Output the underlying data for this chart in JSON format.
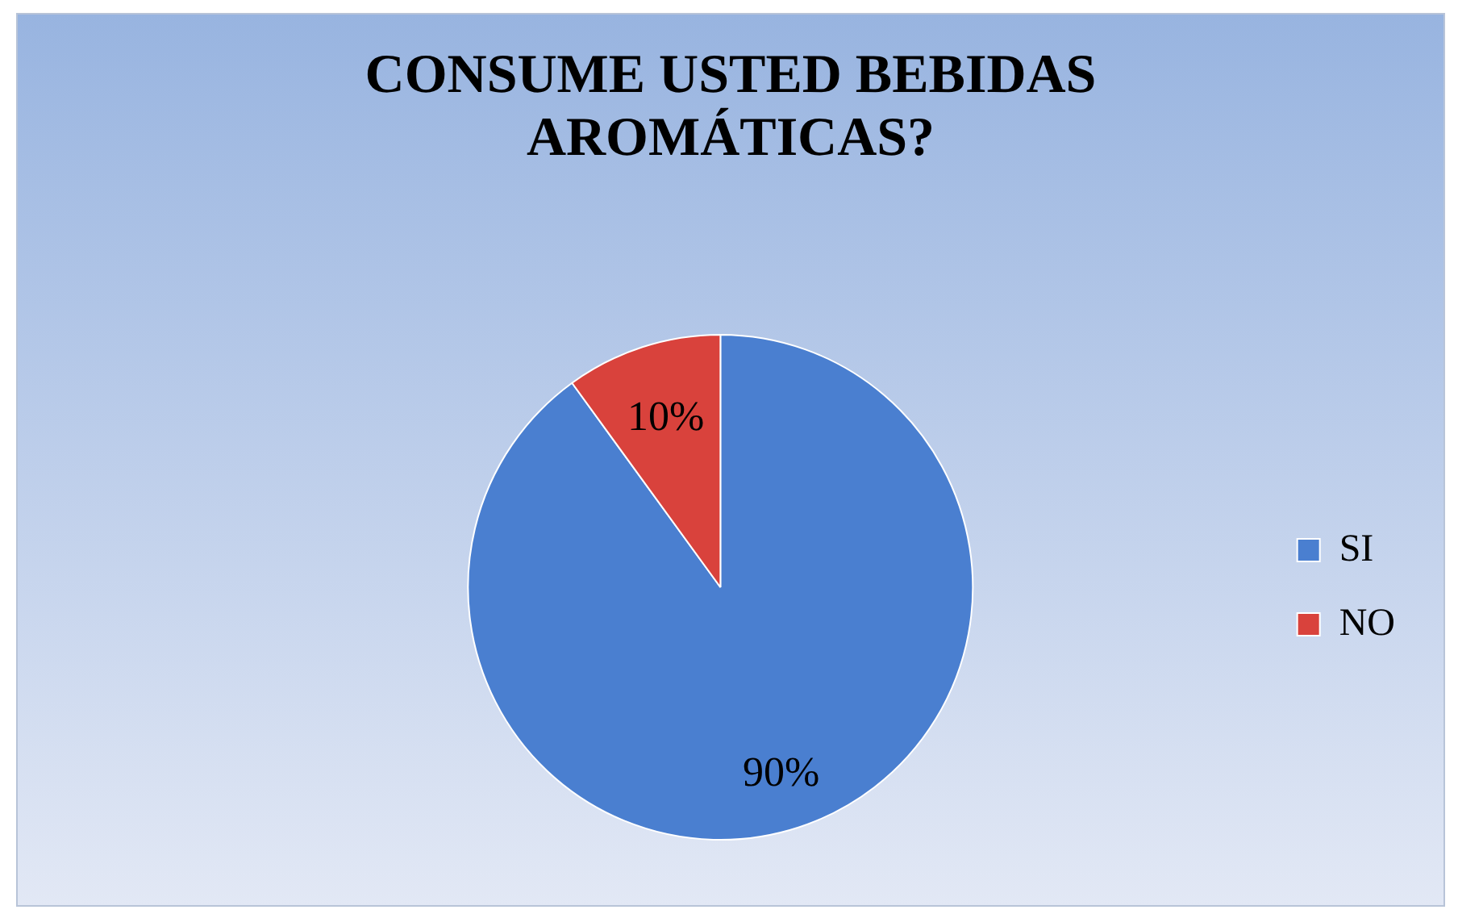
{
  "chart_data": {
    "type": "pie",
    "title": "CONSUME USTED BEBIDAS AROMÁTICAS?",
    "categories": [
      "SI",
      "NO"
    ],
    "values": [
      90,
      10
    ],
    "colors": [
      "#4a7fd0",
      "#d9423c"
    ],
    "value_labels": [
      "90%",
      "10%"
    ],
    "legend": "right"
  }
}
